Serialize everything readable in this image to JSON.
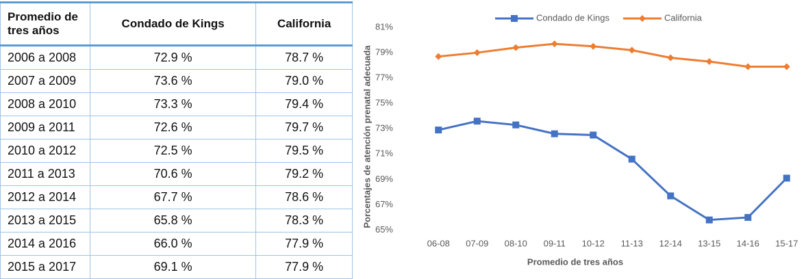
{
  "table": {
    "header": [
      "Promedio de tres años",
      "Condado de Kings",
      "California"
    ],
    "rows": [
      [
        "2006 a 2008",
        "72.9 %",
        "78.7 %"
      ],
      [
        "2007 a 2009",
        "73.6 %",
        "79.0 %"
      ],
      [
        "2008 a 2010",
        "73.3 %",
        "79.4 %"
      ],
      [
        "2009 a 2011",
        "72.6 %",
        "79.7 %"
      ],
      [
        "2010 a 2012",
        "72.5 %",
        "79.5 %"
      ],
      [
        "2011 a 2013",
        "70.6 %",
        "79.2 %"
      ],
      [
        "2012 a 2014",
        "67.7 %",
        "78.6 %"
      ],
      [
        "2013 a 2015",
        "65.8 %",
        "78.3 %"
      ],
      [
        "2014 a 2016",
        "66.0 %",
        "77.9 %"
      ],
      [
        "2015 a 2017",
        "69.1 %",
        "77.9 %"
      ]
    ]
  },
  "chart_data": {
    "type": "line",
    "x_label": "Promedio de tres años",
    "y_label": "Porcentajes de atención prenatal adecuada",
    "categories": [
      "06-08",
      "07-09",
      "08-10",
      "09-11",
      "10-12",
      "11-13",
      "12-14",
      "13-15",
      "14-16",
      "15-17"
    ],
    "series": [
      {
        "name": "Condado de Kings",
        "color": "#4472c4",
        "marker": "square",
        "values": [
          72.9,
          73.6,
          73.3,
          72.6,
          72.5,
          70.6,
          67.7,
          65.8,
          66.0,
          69.1
        ]
      },
      {
        "name": "California",
        "color": "#ed7d31",
        "marker": "diamond",
        "values": [
          78.7,
          79.0,
          79.4,
          79.7,
          79.5,
          79.2,
          78.6,
          78.3,
          77.9,
          77.9
        ]
      }
    ],
    "ylim": [
      64,
      81
    ],
    "yticks": [
      {
        "value": 65,
        "label": "65%"
      },
      {
        "value": 67,
        "label": "67%"
      },
      {
        "value": 69,
        "label": "69%"
      },
      {
        "value": 71,
        "label": "71%"
      },
      {
        "value": 73,
        "label": "73%"
      },
      {
        "value": 75,
        "label": "75%"
      },
      {
        "value": 77,
        "label": "77%"
      },
      {
        "value": 79,
        "label": "79%"
      },
      {
        "value": 81,
        "label": "81%"
      }
    ],
    "legend": "top",
    "grid": false
  }
}
